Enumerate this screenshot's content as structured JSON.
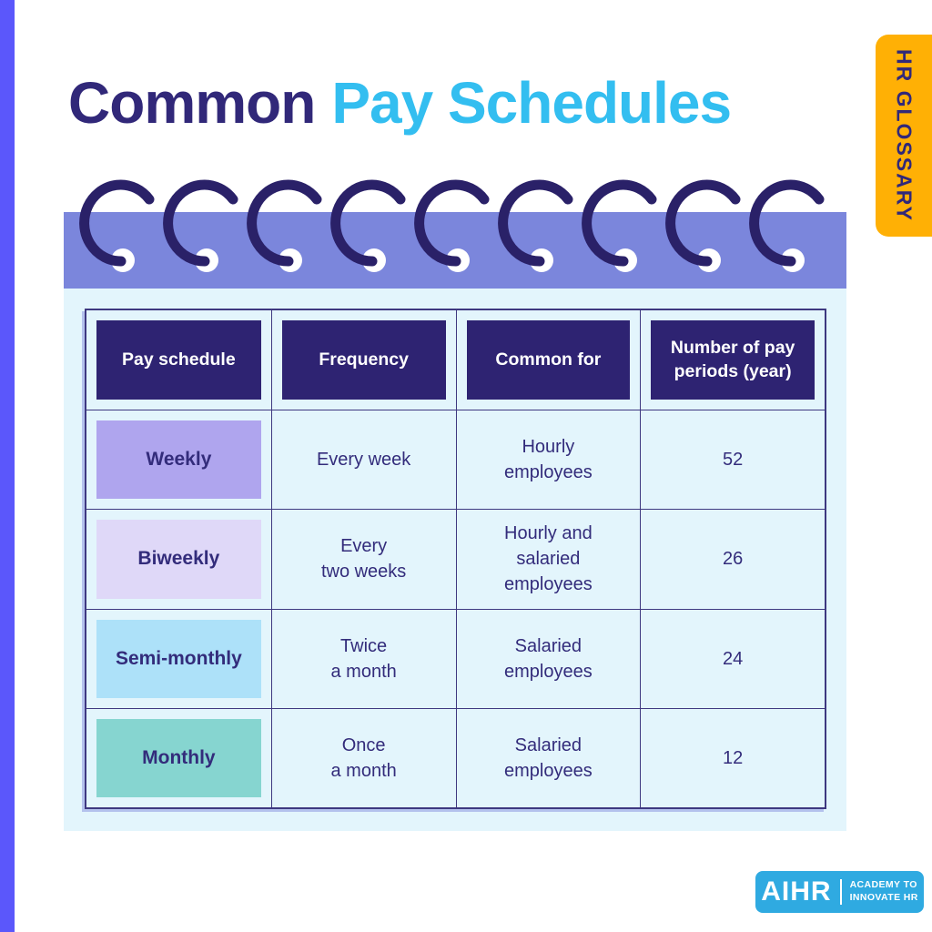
{
  "title": {
    "part1": "Common",
    "part2": "Pay Schedules"
  },
  "side_tab": "HR GLOSSARY",
  "logo": {
    "name": "AIHR",
    "tagline": "ACADEMY TO\nINNOVATE HR"
  },
  "table": {
    "headers": [
      "Pay schedule",
      "Frequency",
      "Common for",
      "Number of pay\nperiods (year)"
    ],
    "rows": [
      {
        "schedule": "Weekly",
        "frequency": "Every week",
        "common_for": "Hourly\nemployees",
        "periods": "52",
        "color": "#AFA5EE"
      },
      {
        "schedule": "Biweekly",
        "frequency": "Every\ntwo weeks",
        "common_for": "Hourly and\nsalaried\nemployees",
        "periods": "26",
        "color": "#DFD8F8"
      },
      {
        "schedule": "Semi-monthly",
        "frequency": "Twice\na month",
        "common_for": "Salaried\nemployees",
        "periods": "24",
        "color": "#ADE1F9"
      },
      {
        "schedule": "Monthly",
        "frequency": "Once\na month",
        "common_for": "Salaried\nemployees",
        "periods": "12",
        "color": "#86D5D0"
      }
    ]
  },
  "chart_data": {
    "type": "table",
    "title": "Common Pay Schedules",
    "columns": [
      "Pay schedule",
      "Frequency",
      "Common for",
      "Number of pay periods (year)"
    ],
    "rows": [
      [
        "Weekly",
        "Every week",
        "Hourly employees",
        52
      ],
      [
        "Biweekly",
        "Every two weeks",
        "Hourly and salaried employees",
        26
      ],
      [
        "Semi-monthly",
        "Twice a month",
        "Salaried employees",
        24
      ],
      [
        "Monthly",
        "Once a month",
        "Salaried employees",
        12
      ]
    ]
  },
  "colors": {
    "accent_bar": "#5B57FB",
    "title_primary": "#312879",
    "title_secondary": "#33BEF0",
    "tab_bg": "#FFB005",
    "band": "#7B86DC",
    "panel": "#E3F5FC",
    "line": "#3E3880",
    "header_bg": "#2E2372",
    "header_text": "#FFFFFF",
    "cell_text": "#332C7B",
    "ring": "#2A2168",
    "ring_hole": "#FFFFFF",
    "logo_bg": "#2FAAE1",
    "logo_text": "#FFFFFF"
  }
}
